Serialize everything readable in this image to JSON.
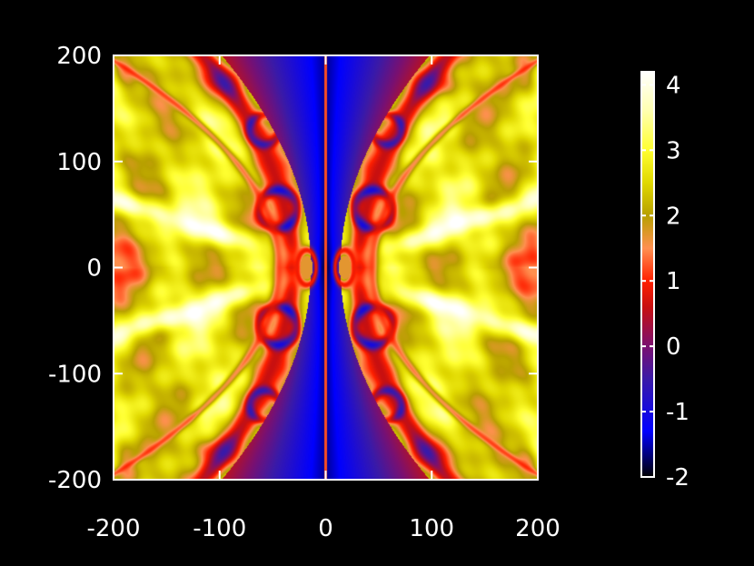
{
  "chart_data": {
    "type": "heatmap",
    "title": "",
    "xlabel": "",
    "ylabel": "",
    "xlim": [
      -200,
      200
    ],
    "ylim": [
      -200,
      200
    ],
    "x_ticks": [
      "-200",
      "-100",
      "0",
      "100",
      "200"
    ],
    "y_ticks": [
      "-200",
      "-100",
      "0",
      "100",
      "200"
    ],
    "x_tick_values": [
      -200,
      -100,
      0,
      100,
      200
    ],
    "y_tick_values": [
      -200,
      -100,
      0,
      100,
      200
    ],
    "colorbar": {
      "range": [
        -2,
        4.2
      ],
      "ticks": [
        "-2",
        "-1",
        "0",
        "1",
        "2",
        "3",
        "4"
      ],
      "tick_values": [
        -2,
        -1,
        0,
        1,
        2,
        3,
        4
      ],
      "colormap": [
        {
          "v": -2.0,
          "color": "#000000"
        },
        {
          "v": -1.3,
          "color": "#0000ff"
        },
        {
          "v": -0.5,
          "color": "#3a1aa8"
        },
        {
          "v": 0.0,
          "color": "#7a1070"
        },
        {
          "v": 0.6,
          "color": "#c81010"
        },
        {
          "v": 1.0,
          "color": "#ff2000"
        },
        {
          "v": 1.5,
          "color": "#ff9050"
        },
        {
          "v": 2.0,
          "color": "#b8a000"
        },
        {
          "v": 2.5,
          "color": "#e0d800"
        },
        {
          "v": 3.0,
          "color": "#ffff30"
        },
        {
          "v": 3.6,
          "color": "#ffffb0"
        },
        {
          "v": 4.2,
          "color": "#ffffff"
        }
      ]
    },
    "grid": false,
    "background_color": "#000000",
    "axis_color": "#ffffff"
  }
}
